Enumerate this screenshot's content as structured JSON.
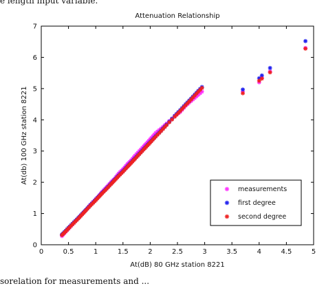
{
  "page_text": {
    "top_partial": "e length input variable.",
    "bottom_partial": "sorelation for measurements and ..."
  },
  "chart_data": {
    "type": "scatter",
    "title": "Attenuation Relationship",
    "xlabel": "At(dB) 80 GHz station 8221",
    "ylabel": "At(db) 100 GHz station 8221",
    "xlim": [
      0,
      5
    ],
    "ylim": [
      0,
      7
    ],
    "xticks": [
      "0",
      "0.5",
      "1",
      "1.5",
      "2",
      "2.5",
      "3",
      "3.5",
      "4",
      "4.5",
      "5"
    ],
    "yticks": [
      "0",
      "1",
      "2",
      "3",
      "4",
      "5",
      "6",
      "7"
    ],
    "grid": false,
    "legend_position": "lower-right",
    "series": [
      {
        "name": "measurements",
        "color": "#ff33ff",
        "x": [
          0.38,
          0.45,
          0.52,
          0.6,
          0.68,
          0.75,
          0.82,
          0.9,
          0.98,
          1.05,
          1.12,
          1.2,
          1.28,
          1.35,
          1.42,
          1.5,
          1.58,
          1.65,
          1.72,
          1.8,
          1.88,
          1.95,
          2.02,
          2.1,
          2.2,
          2.3,
          2.45,
          2.55,
          2.65,
          2.75,
          2.85,
          2.95,
          3.7,
          4.0,
          4.05,
          4.2,
          4.85
        ],
        "y": [
          0.28,
          0.42,
          0.55,
          0.7,
          0.85,
          0.98,
          1.12,
          1.28,
          1.42,
          1.55,
          1.7,
          1.85,
          2.0,
          2.12,
          2.28,
          2.42,
          2.58,
          2.7,
          2.85,
          3.0,
          3.15,
          3.28,
          3.42,
          3.58,
          3.72,
          3.88,
          4.12,
          4.25,
          4.45,
          4.6,
          4.75,
          4.9,
          4.9,
          5.2,
          5.35,
          5.55,
          6.3
        ]
      },
      {
        "name": "first degree",
        "color": "#2222ee",
        "x": [
          0.38,
          0.45,
          0.52,
          0.6,
          0.68,
          0.75,
          0.82,
          0.9,
          0.98,
          1.05,
          1.12,
          1.2,
          1.28,
          1.35,
          1.42,
          1.5,
          1.58,
          1.65,
          1.72,
          1.8,
          1.88,
          1.95,
          2.02,
          2.1,
          2.2,
          2.3,
          2.45,
          2.55,
          2.65,
          2.75,
          2.85,
          2.95,
          3.7,
          4.0,
          4.05,
          4.2,
          4.85
        ],
        "y": [
          0.33,
          0.45,
          0.58,
          0.72,
          0.86,
          0.99,
          1.12,
          1.27,
          1.41,
          1.54,
          1.67,
          1.81,
          1.96,
          2.09,
          2.22,
          2.36,
          2.51,
          2.64,
          2.77,
          2.92,
          3.07,
          3.2,
          3.33,
          3.48,
          3.66,
          3.85,
          4.13,
          4.31,
          4.5,
          4.68,
          4.87,
          5.05,
          4.97,
          5.33,
          5.42,
          5.66,
          6.52
        ]
      },
      {
        "name": "second degree",
        "color": "#ee2222",
        "x": [
          0.38,
          0.45,
          0.52,
          0.6,
          0.68,
          0.75,
          0.82,
          0.9,
          0.98,
          1.05,
          1.12,
          1.2,
          1.28,
          1.35,
          1.42,
          1.5,
          1.58,
          1.65,
          1.72,
          1.8,
          1.88,
          1.95,
          2.02,
          2.1,
          2.2,
          2.3,
          2.45,
          2.55,
          2.65,
          2.75,
          2.85,
          2.95,
          3.7,
          4.0,
          4.05,
          4.2,
          4.85
        ],
        "y": [
          0.31,
          0.43,
          0.56,
          0.7,
          0.84,
          0.97,
          1.1,
          1.25,
          1.39,
          1.52,
          1.65,
          1.79,
          1.94,
          2.07,
          2.2,
          2.34,
          2.49,
          2.62,
          2.75,
          2.9,
          3.05,
          3.18,
          3.31,
          3.46,
          3.64,
          3.83,
          4.1,
          4.28,
          4.47,
          4.65,
          4.84,
          5.02,
          4.85,
          5.25,
          5.32,
          5.52,
          6.28
        ]
      }
    ]
  }
}
